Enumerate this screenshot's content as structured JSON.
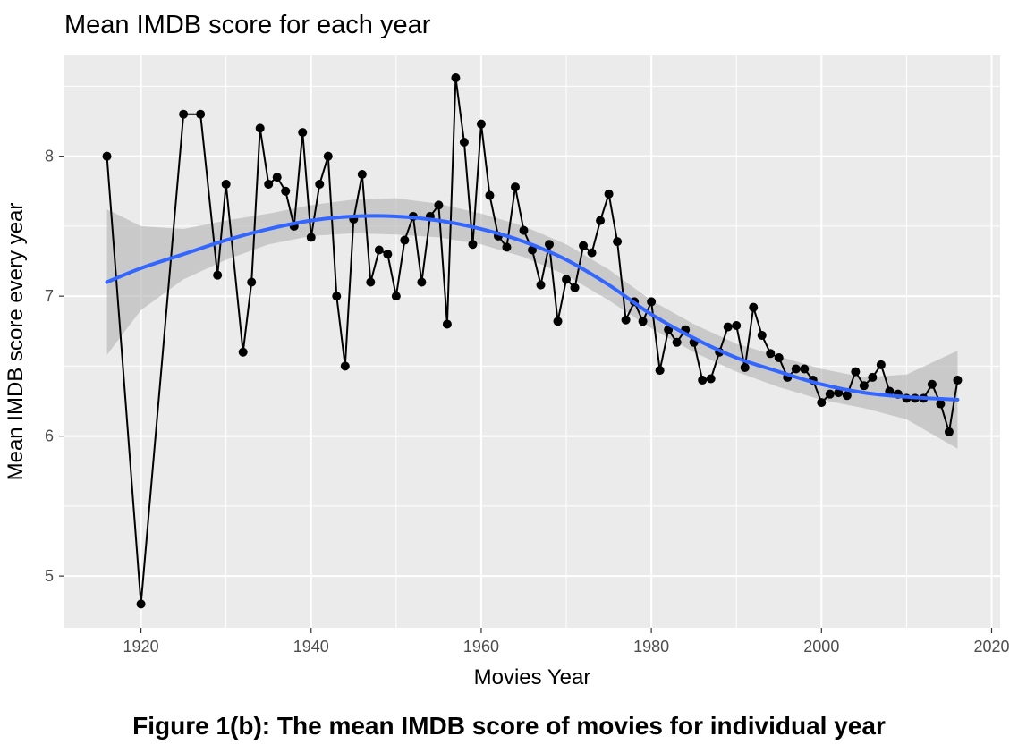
{
  "caption": "Figure 1(b): The mean IMDB score of movies for individual year",
  "chart_data": {
    "type": "line",
    "title": "Mean IMDB score for each year",
    "xlabel": "Movies Year",
    "ylabel": "Mean IMDB score every year",
    "xlim": [
      1911,
      2021
    ],
    "ylim": [
      4.63,
      8.72
    ],
    "x_ticks": [
      1920,
      1940,
      1960,
      1980,
      2000,
      2020
    ],
    "y_ticks": [
      5,
      6,
      7,
      8
    ],
    "grid": true,
    "background_color": "#ebebeb",
    "line_color": "#000000",
    "smooth_color": "#3366ff",
    "band_color": "#b3b3b3",
    "series": [
      {
        "x": [
          1916,
          1920,
          1925,
          1927,
          1929,
          1930,
          1932,
          1933,
          1934,
          1935,
          1936,
          1937,
          1938,
          1939,
          1940,
          1941,
          1942,
          1943,
          1944,
          1945,
          1946,
          1947,
          1948,
          1949,
          1950,
          1951,
          1952,
          1953,
          1954,
          1955,
          1956,
          1957,
          1958,
          1959,
          1960,
          1961,
          1962,
          1963,
          1964,
          1965,
          1966,
          1967,
          1968,
          1969,
          1970,
          1971,
          1972,
          1973,
          1974,
          1975,
          1976,
          1977,
          1978,
          1979,
          1980,
          1981,
          1982,
          1983,
          1984,
          1985,
          1986,
          1987,
          1988,
          1989,
          1990,
          1991,
          1992,
          1993,
          1994,
          1995,
          1996,
          1997,
          1998,
          1999,
          2000,
          2001,
          2002,
          2003,
          2004,
          2005,
          2006,
          2007,
          2008,
          2009,
          2010,
          2011,
          2012,
          2013,
          2014,
          2015,
          2016
        ],
        "y": [
          8.0,
          4.8,
          8.3,
          8.3,
          7.15,
          7.8,
          6.6,
          7.1,
          8.2,
          7.8,
          7.85,
          7.75,
          7.5,
          8.17,
          7.42,
          7.8,
          8.0,
          7.0,
          6.5,
          7.55,
          7.87,
          7.1,
          7.33,
          7.3,
          7.0,
          7.4,
          7.57,
          7.1,
          7.57,
          7.65,
          6.8,
          8.56,
          8.1,
          7.37,
          8.23,
          7.72,
          7.43,
          7.35,
          7.78,
          7.47,
          7.33,
          7.08,
          7.37,
          6.82,
          7.12,
          7.06,
          7.36,
          7.31,
          7.54,
          7.73,
          7.39,
          6.83,
          6.96,
          6.82,
          6.96,
          6.47,
          6.76,
          6.67,
          6.76,
          6.67,
          6.4,
          6.41,
          6.6,
          6.78,
          6.79,
          6.49,
          6.92,
          6.72,
          6.59,
          6.56,
          6.42,
          6.48,
          6.48,
          6.4,
          6.24,
          6.3,
          6.31,
          6.29,
          6.46,
          6.36,
          6.42,
          6.51,
          6.32,
          6.3,
          6.27,
          6.27,
          6.27,
          6.37,
          6.23,
          6.03,
          6.4
        ]
      }
    ],
    "smooth": {
      "x": [
        1916,
        1920,
        1925,
        1930,
        1935,
        1940,
        1945,
        1950,
        1955,
        1960,
        1965,
        1970,
        1975,
        1980,
        1985,
        1990,
        1995,
        2000,
        2005,
        2010,
        2016
      ],
      "y": [
        7.1,
        7.2,
        7.3,
        7.4,
        7.48,
        7.54,
        7.57,
        7.57,
        7.54,
        7.48,
        7.39,
        7.26,
        7.08,
        6.87,
        6.7,
        6.56,
        6.46,
        6.37,
        6.31,
        6.28,
        6.26
      ],
      "lower": [
        6.58,
        6.9,
        7.12,
        7.26,
        7.37,
        7.43,
        7.45,
        7.44,
        7.42,
        7.37,
        7.28,
        7.15,
        6.97,
        6.77,
        6.6,
        6.46,
        6.35,
        6.26,
        6.2,
        6.12,
        5.91
      ],
      "upper": [
        7.62,
        7.5,
        7.48,
        7.54,
        7.59,
        7.65,
        7.69,
        7.7,
        7.66,
        7.59,
        7.5,
        7.37,
        7.19,
        6.97,
        6.8,
        6.66,
        6.57,
        6.48,
        6.42,
        6.44,
        6.61
      ]
    }
  }
}
